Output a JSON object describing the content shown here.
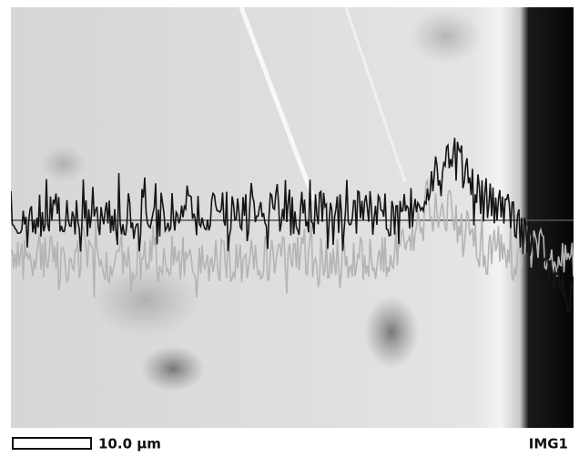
{
  "scale_bar": {
    "label": "10.0 µm"
  },
  "image_label": "IMG1"
}
